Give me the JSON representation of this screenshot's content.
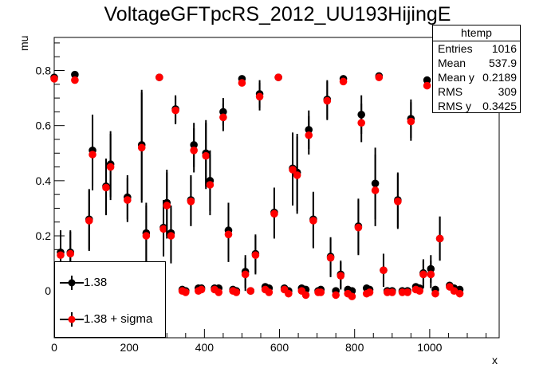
{
  "chart_data": {
    "type": "scatter",
    "title": "VoltageGFTpcRS_2012_UU193HijingE",
    "xlabel": "x",
    "ylabel": "mu",
    "xlim": [
      0,
      1185
    ],
    "ylim": [
      -0.17,
      0.92
    ],
    "xticks": [
      0,
      200,
      400,
      600,
      800,
      1000
    ],
    "yticks": [
      0,
      0.2,
      0.4,
      0.6,
      0.8
    ],
    "ytick_labels": [
      "0",
      "0.2",
      "0.4",
      "0.6",
      "0.8"
    ],
    "stats": {
      "name": "htemp",
      "rows": [
        {
          "label": "Entries",
          "value": "1016"
        },
        {
          "label": "Mean",
          "value": "537.9"
        },
        {
          "label": "Mean y",
          "value": "0.2189"
        },
        {
          "label": "RMS",
          "value": "309"
        },
        {
          "label": "RMS y",
          "value": "0.3425"
        }
      ]
    },
    "legend_position": "bottom-left",
    "series": [
      {
        "name": "1.38",
        "color": "#000000",
        "points": [
          [
            0,
            0.775,
            0
          ],
          [
            17,
            0.14,
            0.08
          ],
          [
            43,
            0.14,
            0.08
          ],
          [
            55,
            0.785,
            0
          ],
          [
            93,
            0.26,
            0.11
          ],
          [
            102,
            0.51,
            0.13
          ],
          [
            138,
            0.38,
            0.1
          ],
          [
            150,
            0.46,
            0.12
          ],
          [
            195,
            0.34,
            0.08
          ],
          [
            233,
            0.53,
            0.2
          ],
          [
            245,
            0.21,
            0.11
          ],
          [
            280,
            0.775,
            0
          ],
          [
            291,
            0.23,
            0.1
          ],
          [
            300,
            0.32,
            0.12
          ],
          [
            311,
            0.21,
            0.1
          ],
          [
            323,
            0.66,
            0.05
          ],
          [
            341,
            0.005,
            0
          ],
          [
            350,
            0,
            0
          ],
          [
            364,
            0.33,
            0.09
          ],
          [
            372,
            0.53,
            0.08
          ],
          [
            384,
            0.01,
            0
          ],
          [
            392,
            0.01,
            0
          ],
          [
            404,
            0.5,
            0.12
          ],
          [
            415,
            0.4,
            0.11
          ],
          [
            427,
            0.01,
            0
          ],
          [
            438,
            0.01,
            0
          ],
          [
            450,
            0.65,
            0.05
          ],
          [
            464,
            0.22,
            0.1
          ],
          [
            476,
            0.005,
            0
          ],
          [
            485,
            0.0,
            0
          ],
          [
            500,
            0.77,
            0
          ],
          [
            509,
            0.07,
            0.06
          ],
          [
            523,
            0.0,
            0
          ],
          [
            536,
            0.135,
            0.07
          ],
          [
            547,
            0.715,
            0.05
          ],
          [
            562,
            0.015,
            0
          ],
          [
            572,
            0.01,
            0
          ],
          [
            586,
            0.285,
            0.09
          ],
          [
            597,
            0.775,
            0
          ],
          [
            613,
            0.01,
            0
          ],
          [
            624,
            0.0,
            0
          ],
          [
            635,
            0.445,
            0.13
          ],
          [
            647,
            0.43,
            0.14
          ],
          [
            659,
            0.01,
            0
          ],
          [
            670,
            0.005,
            0
          ],
          [
            678,
            0.585,
            0.07
          ],
          [
            690,
            0.26,
            0.1
          ],
          [
            703,
            0.0,
            0
          ],
          [
            710,
            0.005,
            0
          ],
          [
            727,
            0.695,
            0.07
          ],
          [
            736,
            0.125,
            0.07
          ],
          [
            750,
            0.0,
            0
          ],
          [
            763,
            0.06,
            0.05
          ],
          [
            770,
            0.77,
            0
          ],
          [
            782,
            0.005,
            0
          ],
          [
            793,
            0.0,
            0
          ],
          [
            810,
            0.235,
            0.1
          ],
          [
            818,
            0.64,
            0.07
          ],
          [
            832,
            0.01,
            0
          ],
          [
            840,
            0.005,
            0
          ],
          [
            855,
            0.39,
            0.13
          ],
          [
            865,
            0.78,
            0
          ],
          [
            877,
            0.075,
            0.06
          ],
          [
            887,
            0.0,
            0
          ],
          [
            900,
            0.0,
            0
          ],
          [
            915,
            0.33,
            0.1
          ],
          [
            927,
            0.0,
            0
          ],
          [
            941,
            0.0,
            0
          ],
          [
            950,
            0.625,
            0.07
          ],
          [
            963,
            0.015,
            0
          ],
          [
            973,
            0.01,
            0
          ],
          [
            983,
            0.065,
            0.05
          ],
          [
            993,
            0.765,
            0
          ],
          [
            1003,
            0.08,
            0.05
          ],
          [
            1015,
            0.005,
            0
          ],
          [
            1027,
            0.19,
            0.08
          ],
          [
            1045,
            0.745,
            0
          ],
          [
            1053,
            0.02,
            0
          ],
          [
            1065,
            0.01,
            0
          ],
          [
            1080,
            0.005,
            0
          ]
        ]
      },
      {
        "name": "1.38 + sigma",
        "color": "#ff0000",
        "points": [
          [
            0,
            0.77,
            0
          ],
          [
            17,
            0.13,
            0.08
          ],
          [
            43,
            0.135,
            0.08
          ],
          [
            55,
            0.765,
            0
          ],
          [
            93,
            0.255,
            0.11
          ],
          [
            102,
            0.495,
            0.13
          ],
          [
            138,
            0.375,
            0.1
          ],
          [
            150,
            0.45,
            0.12
          ],
          [
            195,
            0.33,
            0.08
          ],
          [
            233,
            0.52,
            0.2
          ],
          [
            245,
            0.2,
            0.11
          ],
          [
            280,
            0.775,
            0
          ],
          [
            291,
            0.225,
            0.1
          ],
          [
            300,
            0.31,
            0.12
          ],
          [
            311,
            0.2,
            0.1
          ],
          [
            323,
            0.655,
            0.05
          ],
          [
            341,
            0.0,
            0
          ],
          [
            350,
            -0.005,
            0
          ],
          [
            364,
            0.325,
            0.09
          ],
          [
            372,
            0.51,
            0.08
          ],
          [
            384,
            0.0,
            0
          ],
          [
            392,
            0.005,
            0
          ],
          [
            404,
            0.49,
            0.12
          ],
          [
            415,
            0.385,
            0.11
          ],
          [
            427,
            0.005,
            0
          ],
          [
            438,
            -0.005,
            0
          ],
          [
            450,
            0.63,
            0.05
          ],
          [
            464,
            0.205,
            0.1
          ],
          [
            476,
            0.0,
            0
          ],
          [
            485,
            -0.005,
            0
          ],
          [
            500,
            0.755,
            0
          ],
          [
            509,
            0.06,
            0.06
          ],
          [
            523,
            0.0,
            0
          ],
          [
            536,
            0.13,
            0.07
          ],
          [
            547,
            0.705,
            0.05
          ],
          [
            562,
            0.005,
            0
          ],
          [
            572,
            -0.005,
            0
          ],
          [
            586,
            0.28,
            0.09
          ],
          [
            597,
            0.775,
            0
          ],
          [
            613,
            0.005,
            0
          ],
          [
            624,
            -0.01,
            0
          ],
          [
            635,
            0.44,
            0.13
          ],
          [
            647,
            0.42,
            0.14
          ],
          [
            659,
            0.0,
            0
          ],
          [
            670,
            -0.015,
            0
          ],
          [
            678,
            0.565,
            0.07
          ],
          [
            690,
            0.255,
            0.1
          ],
          [
            703,
            -0.005,
            0
          ],
          [
            710,
            -0.005,
            0
          ],
          [
            727,
            0.69,
            0.07
          ],
          [
            736,
            0.12,
            0.07
          ],
          [
            750,
            -0.015,
            0
          ],
          [
            763,
            0.055,
            0.05
          ],
          [
            770,
            0.76,
            0
          ],
          [
            782,
            -0.01,
            0
          ],
          [
            793,
            -0.02,
            0
          ],
          [
            810,
            0.23,
            0.1
          ],
          [
            818,
            0.61,
            0.07
          ],
          [
            832,
            -0.01,
            0
          ],
          [
            840,
            -0.005,
            0
          ],
          [
            855,
            0.365,
            0.13
          ],
          [
            865,
            0.775,
            0
          ],
          [
            877,
            0.075,
            0.06
          ],
          [
            887,
            -0.005,
            0
          ],
          [
            900,
            -0.005,
            0
          ],
          [
            915,
            0.325,
            0.1
          ],
          [
            927,
            -0.005,
            0
          ],
          [
            941,
            -0.005,
            0
          ],
          [
            950,
            0.615,
            0.07
          ],
          [
            963,
            0.005,
            0
          ],
          [
            973,
            0.0,
            0
          ],
          [
            983,
            0.06,
            0.05
          ],
          [
            993,
            0.745,
            0
          ],
          [
            1003,
            0.06,
            0.05
          ],
          [
            1015,
            -0.01,
            0
          ],
          [
            1027,
            0.19,
            0.08
          ],
          [
            1045,
            0.745,
            0
          ],
          [
            1053,
            0.015,
            0
          ],
          [
            1065,
            0.0,
            0
          ],
          [
            1080,
            -0.01,
            0
          ]
        ]
      }
    ]
  }
}
